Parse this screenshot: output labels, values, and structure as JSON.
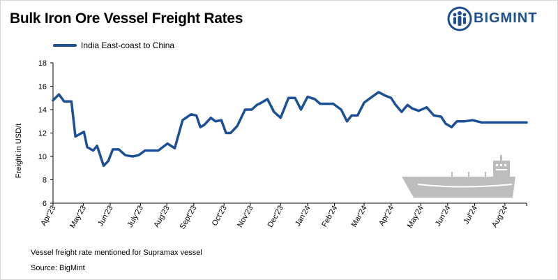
{
  "header": {
    "title": "Bulk Iron Ore Vessel Freight Rates",
    "logo_text": "BIGMINT"
  },
  "footer": {
    "note": "Vessel freight rate mentioned for Supramax vessel",
    "source": "Source:  BigMint"
  },
  "colors": {
    "series": "#1c4f96",
    "brand": "#1d4f8f",
    "ship": "#bdbdbd"
  },
  "chart_data": {
    "type": "line",
    "ylabel": "Freight  in USD/t",
    "ylim": [
      6,
      18
    ],
    "yticks": [
      6,
      8,
      10,
      12,
      14,
      16,
      18
    ],
    "x_range": [
      0,
      72
    ],
    "x_ticks": [
      {
        "label": "Apr'23",
        "x": 0
      },
      {
        "label": "May'23",
        "x": 4.6
      },
      {
        "label": "Jun'23",
        "x": 8.7
      },
      {
        "label": "July'23",
        "x": 13.3
      },
      {
        "label": "Aug'23",
        "x": 17.3
      },
      {
        "label": "Sept'23",
        "x": 21.4
      },
      {
        "label": "Oct'23",
        "x": 26
      },
      {
        "label": "Nov'23",
        "x": 30
      },
      {
        "label": "Dec'23",
        "x": 34.6
      },
      {
        "label": "Jan'24",
        "x": 38.7
      },
      {
        "label": "Feb'24",
        "x": 42.8
      },
      {
        "label": "Mar'24",
        "x": 47.3
      },
      {
        "label": "Apr'24",
        "x": 51.4
      },
      {
        "label": "May'24",
        "x": 55.9
      },
      {
        "label": "Jun'24",
        "x": 60
      },
      {
        "label": "Jul'24",
        "x": 64.1
      },
      {
        "label": "Aug'24",
        "x": 68.7
      }
    ],
    "series": [
      {
        "name": "India East-coast to China",
        "x": [
          0,
          0.9,
          1.7,
          2.8,
          3.4,
          4.7,
          5.2,
          6.1,
          6.7,
          7.7,
          8.4,
          9.1,
          10.0,
          11.0,
          12.1,
          13.0,
          14.0,
          15.2,
          16.0,
          17.4,
          18.5,
          19.7,
          21.0,
          21.8,
          22.4,
          23.0,
          24.0,
          24.7,
          25.6,
          26.3,
          27.0,
          28.0,
          29.2,
          30.2,
          31.0,
          31.7,
          32.6,
          33.6,
          34.6,
          35.8,
          36.8,
          37.7,
          38.7,
          39.8,
          40.6,
          41.4,
          42.6,
          43.8,
          44.7,
          45.4,
          46.3,
          47.3,
          48.5,
          49.5,
          50.5,
          51.4,
          52.1,
          53.0,
          53.9,
          54.6,
          55.6,
          56.8,
          57.9,
          59.0,
          59.7,
          60.6,
          61.4,
          62.5,
          63.8,
          64.5,
          65.2,
          66.0,
          66.5,
          67.4,
          68.3,
          69.0,
          70.0,
          71.1,
          72.0
        ],
        "values": [
          14.8,
          15.3,
          14.7,
          14.7,
          11.7,
          12.1,
          10.8,
          10.5,
          10.9,
          9.2,
          9.6,
          10.6,
          10.6,
          10.1,
          10.0,
          10.1,
          10.5,
          10.5,
          10.5,
          11.1,
          10.7,
          13.1,
          13.6,
          13.5,
          12.5,
          12.7,
          13.3,
          13.0,
          13.1,
          12.0,
          12.0,
          12.6,
          14.0,
          14.0,
          14.4,
          14.6,
          14.9,
          13.8,
          13.3,
          15.0,
          15.0,
          14.0,
          15.1,
          14.9,
          14.5,
          14.5,
          14.5,
          14.0,
          13.0,
          13.5,
          13.5,
          14.6,
          15.1,
          15.5,
          15.2,
          15.0,
          14.4,
          13.8,
          14.4,
          14.1,
          13.9,
          14.2,
          13.5,
          13.4,
          12.8,
          12.5,
          13.0,
          13.0,
          13.1,
          13.0,
          12.9,
          12.9,
          12.9,
          12.9,
          12.9,
          12.9,
          12.9,
          12.9,
          12.9
        ]
      }
    ]
  }
}
